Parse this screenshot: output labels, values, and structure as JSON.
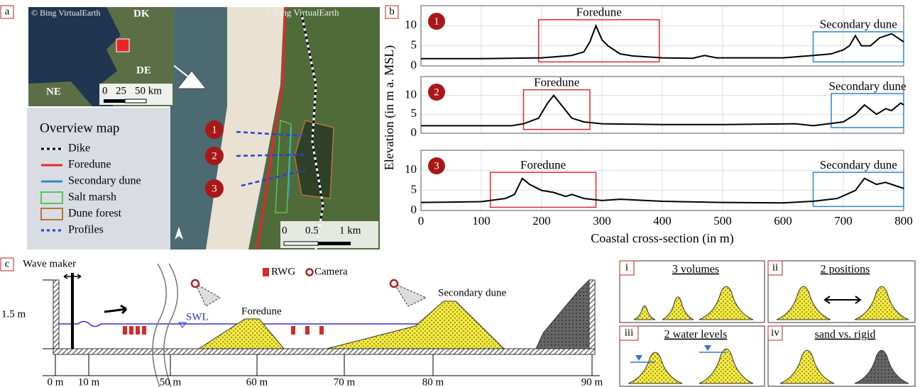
{
  "panel_a": {
    "label": "a",
    "copyright_inset": "© Bing VirtualEarth",
    "copyright_main": "© Bing VirtualEarth",
    "inset_labels": [
      "DK",
      "DE",
      "NE"
    ],
    "inset_scale": [
      "0",
      "25",
      "50 km"
    ],
    "legend_title": "Overview map",
    "legend": [
      {
        "name": "Dike",
        "color": "#000000",
        "style": "dashed"
      },
      {
        "name": "Foredune",
        "color": "#e8262a",
        "style": "line"
      },
      {
        "name": "Secondary dune",
        "color": "#2e86c9",
        "style": "line"
      },
      {
        "name": "Salt marsh",
        "color": "#5cc25a",
        "style": "box"
      },
      {
        "name": "Dune forest",
        "color": "#b8743a",
        "style": "box"
      },
      {
        "name": "Profiles",
        "color": "#2b3fd6",
        "style": "dashed"
      }
    ],
    "profile_markers": [
      "1",
      "2",
      "3"
    ],
    "scale": [
      "0",
      "0.5",
      "1 km"
    ]
  },
  "panel_b": {
    "label": "b",
    "y_label": "Elevation (in m a. MSL)",
    "x_label": "Coastal cross-section (in m)"
  },
  "chart_data": [
    {
      "type": "line",
      "label": "1",
      "color": "#000000",
      "x": [
        0,
        100,
        200,
        250,
        270,
        280,
        290,
        300,
        310,
        330,
        350,
        400,
        450,
        470,
        490,
        550,
        600,
        650,
        680,
        700,
        710,
        720,
        730,
        745,
        760,
        780,
        790,
        800
      ],
      "values": [
        1.8,
        1.8,
        2.0,
        2.6,
        3.5,
        6.0,
        10.0,
        6.5,
        5.0,
        3.0,
        2.5,
        2.0,
        1.9,
        2.6,
        2.0,
        2.0,
        2.0,
        2.6,
        3.0,
        4.0,
        5.0,
        7.5,
        5.0,
        5.0,
        7.0,
        8.0,
        7.0,
        6.0
      ],
      "xlim": [
        0,
        800
      ],
      "ylim": [
        0,
        15
      ],
      "yticks": [
        0,
        5,
        10
      ],
      "grid": true,
      "annotations": [
        {
          "text": "Foredune",
          "color": "#e8262a",
          "xrange": [
            195,
            395
          ],
          "yrange": [
            1,
            11.5
          ]
        },
        {
          "text": "Secondary dune",
          "color": "#2e86c9",
          "xrange": [
            650,
            800
          ],
          "yrange": [
            1,
            8.5
          ]
        }
      ]
    },
    {
      "type": "line",
      "label": "2",
      "color": "#000000",
      "x": [
        0,
        150,
        170,
        195,
        210,
        220,
        235,
        250,
        270,
        300,
        400,
        500,
        620,
        650,
        700,
        720,
        735,
        755,
        770,
        780,
        795,
        800
      ],
      "values": [
        2.0,
        2.0,
        2.5,
        4.0,
        8.0,
        10.0,
        7.0,
        4.0,
        3.0,
        2.5,
        2.3,
        2.3,
        2.5,
        2.0,
        3.0,
        5.0,
        7.5,
        5.0,
        6.5,
        6.0,
        8.0,
        7.5
      ],
      "xlim": [
        0,
        800
      ],
      "ylim": [
        0,
        15
      ],
      "yticks": [
        0,
        5,
        10
      ],
      "grid": true,
      "annotations": [
        {
          "text": "Foredune",
          "color": "#e8262a",
          "xrange": [
            170,
            280
          ],
          "yrange": [
            1,
            11.5
          ]
        },
        {
          "text": "Secondary dune",
          "color": "#2e86c9",
          "xrange": [
            680,
            800
          ],
          "yrange": [
            1.5,
            10.5
          ]
        }
      ]
    },
    {
      "type": "line",
      "label": "3",
      "color": "#000000",
      "x": [
        0,
        100,
        140,
        155,
        168,
        180,
        200,
        220,
        240,
        250,
        270,
        300,
        330,
        400,
        500,
        600,
        650,
        690,
        720,
        735,
        755,
        770,
        790,
        800
      ],
      "values": [
        2.0,
        2.2,
        3.0,
        4.0,
        8.0,
        6.5,
        5.0,
        4.5,
        3.5,
        4.0,
        3.0,
        2.5,
        2.8,
        2.3,
        2.0,
        1.9,
        2.3,
        3.0,
        5.0,
        8.0,
        6.5,
        7.0,
        6.0,
        5.5
      ],
      "xlim": [
        0,
        800
      ],
      "ylim": [
        0,
        15
      ],
      "yticks": [
        0,
        5,
        10
      ],
      "xticks": [
        0,
        100,
        200,
        300,
        400,
        500,
        600,
        700,
        800
      ],
      "grid": true,
      "annotations": [
        {
          "text": "Foredune",
          "color": "#e8262a",
          "xrange": [
            115,
            290
          ],
          "yrange": [
            0.8,
            9.5
          ]
        },
        {
          "text": "Secondary dune",
          "color": "#2e86c9",
          "xrange": [
            650,
            800
          ],
          "yrange": [
            1,
            9.5
          ]
        }
      ]
    }
  ],
  "panel_c": {
    "label": "c",
    "wave_maker": "Wave maker",
    "height": "1.5 m",
    "swl": "SWL",
    "foredune": "Foredune",
    "secondary_dune": "Secondary dune",
    "legend": [
      "RWG",
      "Camera"
    ],
    "axis_labels": [
      "0 m",
      "10 m",
      "50 m",
      "60 m",
      "70 m",
      "80 m",
      "90 m"
    ],
    "subpanels": [
      {
        "label": "i",
        "title": "3 volumes"
      },
      {
        "label": "ii",
        "title": "2 positions"
      },
      {
        "label": "iii",
        "title": "2 water levels"
      },
      {
        "label": "iv",
        "title": "sand vs. rigid"
      }
    ]
  }
}
